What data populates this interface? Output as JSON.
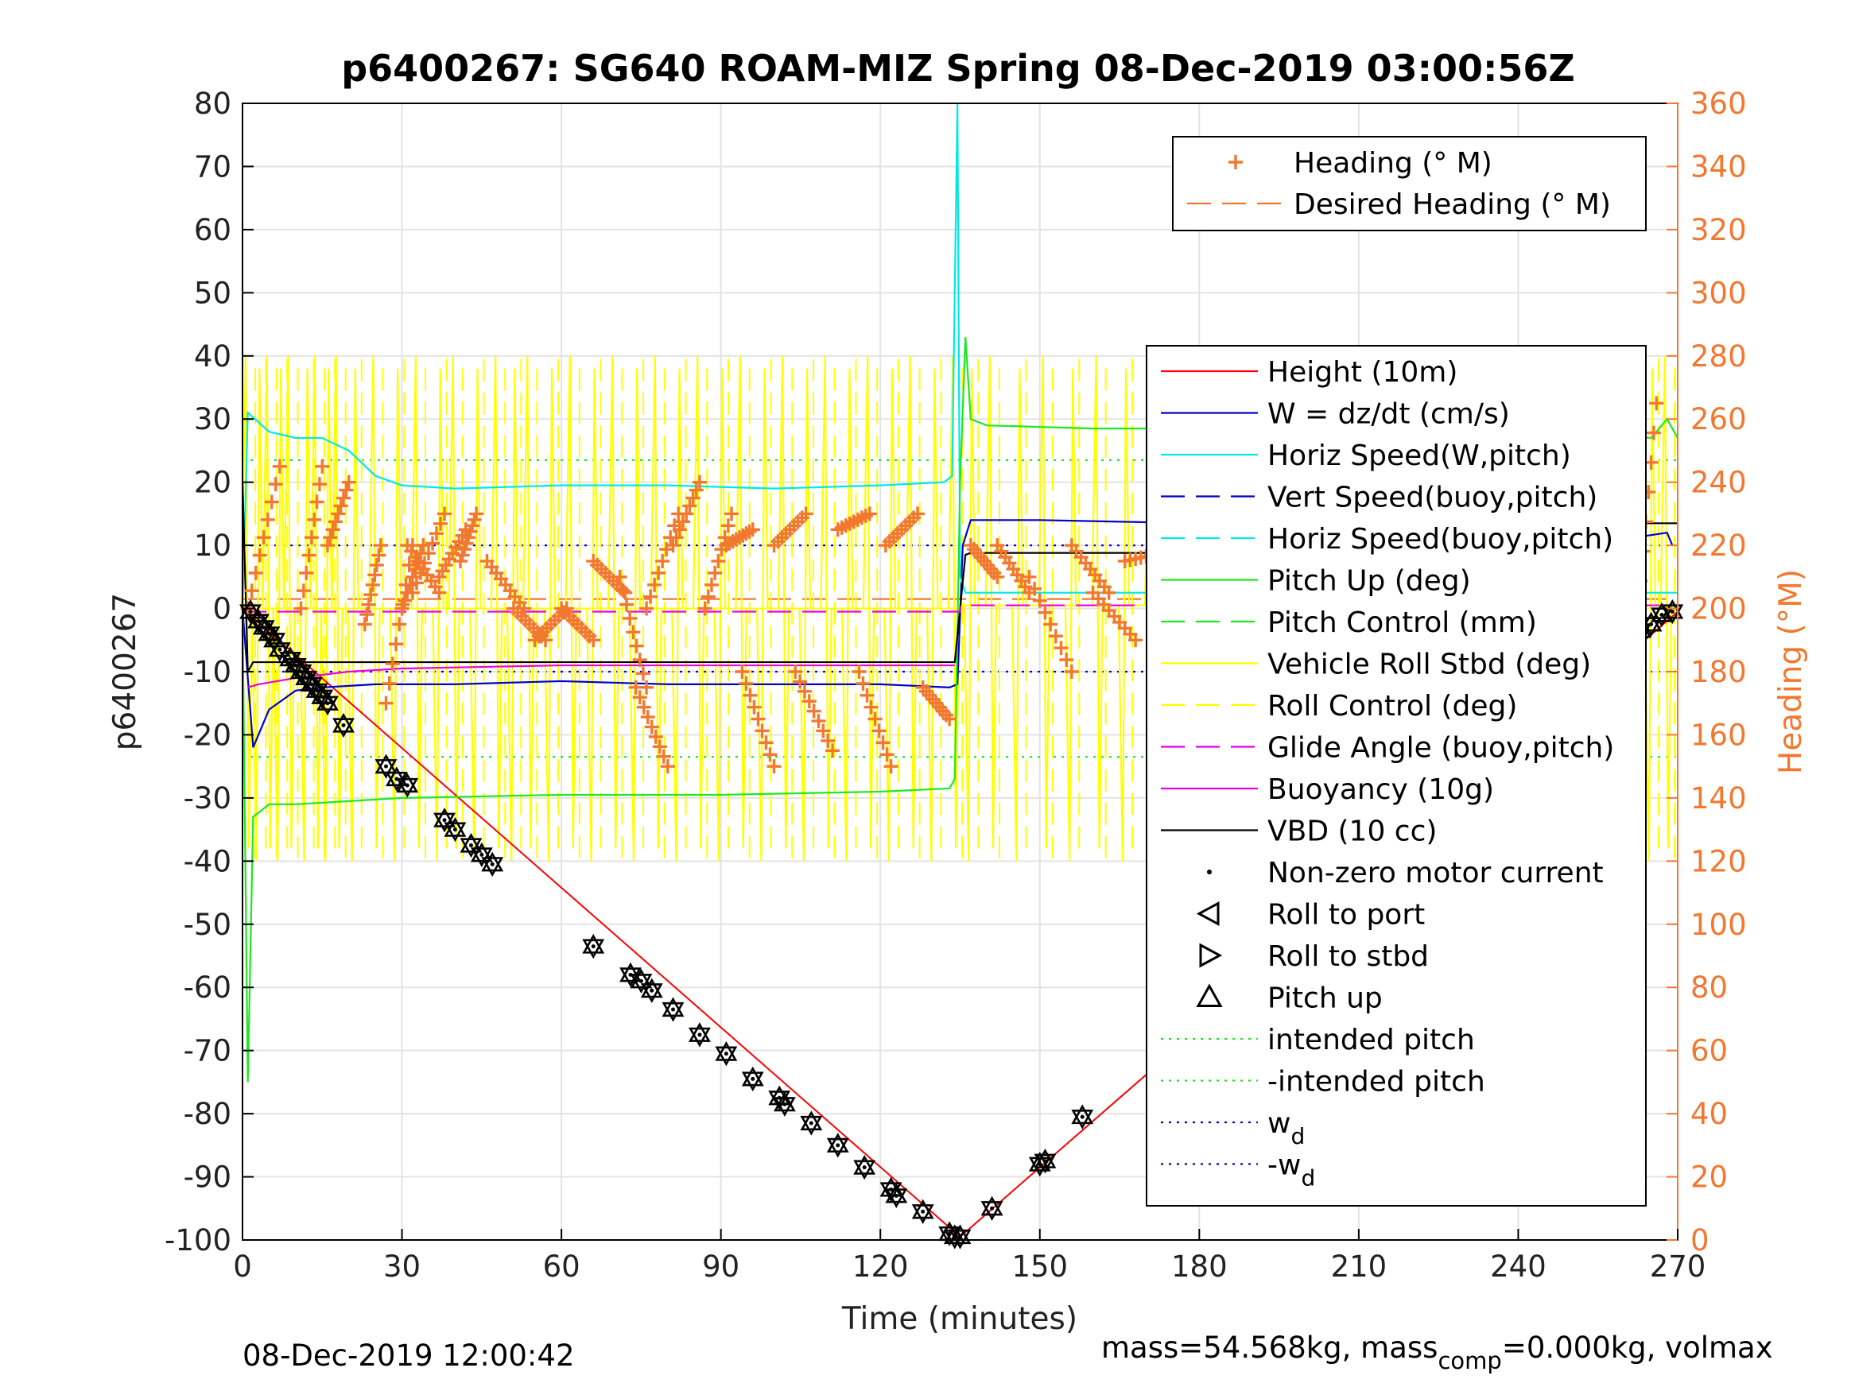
{
  "chart_data": {
    "type": "line",
    "title": "p6400267: SG640 ROAM-MIZ Spring 08-Dec-2019 03:00:56Z",
    "xlabel": "Time (minutes)",
    "ylabel": "p6400267",
    "ylabel_right": "Heading (°M)",
    "xlim": [
      0,
      270
    ],
    "ylim": [
      -100,
      80
    ],
    "ylim_right": [
      0,
      360
    ],
    "x_ticks": [
      0,
      30,
      60,
      90,
      120,
      150,
      180,
      210,
      240,
      270
    ],
    "y_ticks": [
      -100,
      -90,
      -80,
      -70,
      -60,
      -50,
      -40,
      -30,
      -20,
      -10,
      0,
      10,
      20,
      30,
      40,
      50,
      60,
      70,
      80
    ],
    "y_ticks_right": [
      0,
      20,
      40,
      60,
      80,
      100,
      120,
      140,
      160,
      180,
      200,
      220,
      240,
      260,
      280,
      300,
      320,
      340,
      360
    ],
    "grid": true,
    "footer_left": "08-Dec-2019 12:00:42",
    "footer_right": "mass=54.568kg, mass",
    "footer_right_sub": "comp",
    "footer_right_tail": "=0.000kg, volmax",
    "legend_top": [
      {
        "label": "Heading (° M)",
        "color": "#f27830",
        "marker": "+",
        "style": "none"
      },
      {
        "label": "Desired Heading (° M)",
        "color": "#f27830",
        "style": "dash"
      }
    ],
    "legend_main": [
      {
        "label": "Height (10m)",
        "color": "#ff0000",
        "style": "solid"
      },
      {
        "label": "W = dz/dt (cm/s)",
        "color": "#0000c8",
        "style": "solid"
      },
      {
        "label": "Horiz Speed(W,pitch)",
        "color": "#00e8e8",
        "style": "solid"
      },
      {
        "label": "Vert Speed(buoy,pitch)",
        "color": "#0000c8",
        "style": "dash"
      },
      {
        "label": "Horiz Speed(buoy,pitch)",
        "color": "#00e8e8",
        "style": "dash"
      },
      {
        "label": "Pitch Up (deg)",
        "color": "#1ee81e",
        "style": "solid"
      },
      {
        "label": "Pitch Control (mm)",
        "color": "#1ee81e",
        "style": "dash"
      },
      {
        "label": "Vehicle Roll Stbd (deg)",
        "color": "#ffff00",
        "style": "solid"
      },
      {
        "label": "Roll Control (deg)",
        "color": "#ffff00",
        "style": "dash"
      },
      {
        "label": "Glide Angle (buoy,pitch)",
        "color": "#e800e8",
        "style": "dash"
      },
      {
        "label": "Buoyancy (10g)",
        "color": "#e800e8",
        "style": "solid"
      },
      {
        "label": "VBD (10 cc)",
        "color": "#000000",
        "style": "solid"
      },
      {
        "label": "Non-zero motor current",
        "color": "#000000",
        "marker": "dot"
      },
      {
        "label": "Roll to port",
        "color": "#000000",
        "marker": "tri-left"
      },
      {
        "label": "Roll to stbd",
        "color": "#000000",
        "marker": "tri-right"
      },
      {
        "label": "Pitch up",
        "color": "#000000",
        "marker": "tri-up"
      },
      {
        "label": "intended pitch",
        "color": "#1ee81e",
        "style": "dot"
      },
      {
        "label": "-intended pitch",
        "color": "#1ee81e",
        "style": "dot"
      },
      {
        "label": "w",
        "sub": "d",
        "color": "#0000c8",
        "style": "dot"
      },
      {
        "label": "-w",
        "sub": "d",
        "color": "#0000c8",
        "style": "dot"
      }
    ],
    "series": [
      {
        "name": "Height (10m)",
        "color": "#ff0000",
        "x": [
          0,
          135,
          270
        ],
        "y": [
          0,
          -99.5,
          -0.5
        ]
      },
      {
        "name": "W = dz/dt (cm/s)",
        "color": "#0000c8",
        "x": [
          0,
          2,
          5,
          10,
          15,
          25,
          40,
          60,
          80,
          100,
          120,
          133,
          134.5,
          135.5,
          137,
          150,
          180,
          210,
          240,
          260,
          268,
          269
        ],
        "y": [
          0,
          -22,
          -16,
          -13,
          -12.5,
          -12,
          -12,
          -11.5,
          -12,
          -12,
          -12,
          -12.5,
          -12,
          10,
          14,
          14,
          13.5,
          13,
          12,
          11,
          12,
          10
        ]
      },
      {
        "name": "Horiz Speed(W,pitch)",
        "color": "#00e8e8",
        "x": [
          0,
          1,
          5,
          10,
          15,
          20,
          25,
          30,
          40,
          60,
          80,
          100,
          120,
          132,
          133.5,
          134.5,
          135,
          136,
          270
        ],
        "y": [
          0,
          31,
          28,
          27,
          27,
          25,
          21,
          19.5,
          19,
          19.5,
          19.5,
          19,
          19.5,
          20,
          21,
          80,
          5,
          2.5,
          2.5
        ]
      },
      {
        "name": "Pitch Up (deg)",
        "color": "#1ee81e",
        "x": [
          0,
          1,
          2,
          5,
          10,
          20,
          30,
          60,
          90,
          120,
          133,
          134,
          135,
          136,
          137,
          140,
          160,
          180,
          210,
          240,
          260,
          265,
          268,
          270
        ],
        "y": [
          0,
          -75,
          -33,
          -31,
          -31,
          -30.5,
          -30,
          -29.5,
          -29.5,
          -29,
          -28.5,
          -27,
          20,
          43,
          30,
          29,
          28.5,
          28.5,
          28,
          28,
          27.5,
          27,
          30,
          27
        ]
      },
      {
        "name": "VBD (10 cc)",
        "color": "#000000",
        "x": [
          0,
          1,
          2,
          30,
          60,
          90,
          120,
          134,
          136,
          137,
          180,
          210,
          240,
          262,
          263,
          270
        ],
        "y": [
          20,
          -10,
          -8.5,
          -8.5,
          -8.5,
          -8.5,
          -8.5,
          -8.5,
          8.5,
          8.8,
          8.8,
          8.8,
          8.8,
          8.8,
          13.5,
          13.5
        ]
      },
      {
        "name": "Buoyancy (10g)",
        "color": "#e800e8",
        "x": [
          1,
          3,
          10,
          20,
          30,
          60,
          134
        ],
        "y": [
          -12.5,
          -12,
          -11,
          -10,
          -9.5,
          -9,
          -9
        ]
      },
      {
        "name": "Glide Angle (buoy,pitch)",
        "color": "#e800e8",
        "x": [
          0,
          135,
          135,
          270
        ],
        "y": [
          -0.5,
          -0.5,
          0.5,
          0.5
        ]
      },
      {
        "name": "Desired Heading (° M)",
        "color": "#f27830",
        "x": [
          0,
          270
        ],
        "y": [
          3.5,
          3.5
        ]
      },
      {
        "name": "intended pitch",
        "color": "#1ee81e",
        "x": [
          0,
          270
        ],
        "y": [
          23.5,
          23.5
        ]
      },
      {
        "name": "-intended pitch",
        "color": "#1ee81e",
        "x": [
          0,
          270
        ],
        "y": [
          -23.5,
          -23.5
        ]
      },
      {
        "name": "w",
        "color": "#0000c8",
        "x": [
          0,
          270
        ],
        "y": [
          10,
          10
        ]
      },
      {
        "name": "-w",
        "color": "#0000c8",
        "x": [
          0,
          270
        ],
        "y": [
          -10,
          -10
        ]
      }
    ],
    "roll_spikes_x": [
      1,
      3,
      5,
      7,
      9,
      12,
      14,
      16,
      18,
      21,
      25,
      29,
      33,
      37,
      40,
      44,
      48,
      51,
      54,
      58,
      62,
      66,
      70,
      74,
      78,
      82,
      86,
      90,
      94,
      98,
      102,
      106,
      110,
      114,
      118,
      122,
      126,
      130,
      134,
      137,
      141,
      146,
      151,
      156,
      161,
      166,
      171,
      176,
      181,
      186,
      191,
      196,
      201,
      206,
      211,
      216,
      221,
      226,
      231,
      236,
      241,
      246,
      251,
      256,
      261,
      265,
      268
    ],
    "heading_scan_segments": [
      {
        "x": [
          1,
          7
        ],
        "y": [
          200,
          245
        ]
      },
      {
        "x": [
          11,
          15
        ],
        "y": [
          200,
          245
        ]
      },
      {
        "x": [
          16,
          20
        ],
        "y": [
          220,
          240
        ]
      },
      {
        "x": [
          23,
          26
        ],
        "y": [
          195,
          220
        ]
      },
      {
        "x": [
          27,
          32
        ],
        "y": [
          170,
          220
        ]
      },
      {
        "x": [
          30,
          34
        ],
        "y": [
          200,
          220
        ]
      },
      {
        "x": [
          31,
          37
        ],
        "y": [
          220,
          205
        ]
      },
      {
        "x": [
          32,
          38
        ],
        "y": [
          205,
          230
        ]
      },
      {
        "x": [
          37,
          42
        ],
        "y": [
          210,
          225
        ]
      },
      {
        "x": [
          41,
          44
        ],
        "y": [
          215,
          230
        ]
      },
      {
        "x": [
          46,
          53
        ],
        "y": [
          215,
          200
        ]
      },
      {
        "x": [
          51,
          57
        ],
        "y": [
          200,
          190
        ]
      },
      {
        "x": [
          55,
          61
        ],
        "y": [
          190,
          200
        ]
      },
      {
        "x": [
          60,
          66
        ],
        "y": [
          200,
          190
        ]
      },
      {
        "x": [
          66,
          72
        ],
        "y": [
          215,
          205
        ]
      },
      {
        "x": [
          71,
          76
        ],
        "y": [
          210,
          175
        ]
      },
      {
        "x": [
          74,
          80
        ],
        "y": [
          175,
          150
        ]
      },
      {
        "x": [
          76,
          82
        ],
        "y": [
          200,
          230
        ]
      },
      {
        "x": [
          81,
          86
        ],
        "y": [
          220,
          240
        ]
      },
      {
        "x": [
          87,
          92
        ],
        "y": [
          200,
          230
        ]
      },
      {
        "x": [
          91,
          96
        ],
        "y": [
          220,
          225
        ]
      },
      {
        "x": [
          94,
          100
        ],
        "y": [
          180,
          150
        ]
      },
      {
        "x": [
          100,
          106
        ],
        "y": [
          220,
          230
        ]
      },
      {
        "x": [
          104,
          111
        ],
        "y": [
          180,
          155
        ]
      },
      {
        "x": [
          112,
          118
        ],
        "y": [
          225,
          230
        ]
      },
      {
        "x": [
          116,
          122
        ],
        "y": [
          180,
          150
        ]
      },
      {
        "x": [
          121,
          127
        ],
        "y": [
          220,
          230
        ]
      },
      {
        "x": [
          128,
          133
        ],
        "y": [
          175,
          165
        ]
      },
      {
        "x": [
          137,
          142
        ],
        "y": [
          220,
          210
        ]
      },
      {
        "x": [
          142,
          148
        ],
        "y": [
          220,
          205
        ]
      },
      {
        "x": [
          148,
          156
        ],
        "y": [
          210,
          180
        ]
      },
      {
        "x": [
          156,
          163
        ],
        "y": [
          220,
          205
        ]
      },
      {
        "x": [
          160,
          168
        ],
        "y": [
          205,
          190
        ]
      },
      {
        "x": [
          166,
          174
        ],
        "y": [
          215,
          218
        ]
      },
      {
        "x": [
          175,
          182
        ],
        "y": [
          220,
          210
        ]
      },
      {
        "x": [
          181,
          190
        ],
        "y": [
          215,
          195
        ]
      },
      {
        "x": [
          189,
          194
        ],
        "y": [
          200,
          185
        ]
      },
      {
        "x": [
          196,
          203
        ],
        "y": [
          220,
          200
        ]
      },
      {
        "x": [
          200,
          206
        ],
        "y": [
          190,
          180
        ]
      },
      {
        "x": [
          214,
          220
        ],
        "y": [
          215,
          200
        ]
      },
      {
        "x": [
          224,
          232
        ],
        "y": [
          220,
          205
        ]
      },
      {
        "x": [
          236,
          244
        ],
        "y": [
          215,
          200
        ]
      },
      {
        "x": [
          250,
          258
        ],
        "y": [
          215,
          195
        ]
      },
      {
        "x": [
          262,
          266
        ],
        "y": [
          190,
          265
        ]
      }
    ],
    "motor_markers": [
      {
        "x": 1.5,
        "y": -0.5
      },
      {
        "x": 3,
        "y": -2
      },
      {
        "x": 4,
        "y": -3
      },
      {
        "x": 5,
        "y": -4
      },
      {
        "x": 6,
        "y": -5
      },
      {
        "x": 7,
        "y": -6.5
      },
      {
        "x": 9,
        "y": -8
      },
      {
        "x": 10,
        "y": -9
      },
      {
        "x": 11,
        "y": -10
      },
      {
        "x": 12,
        "y": -11
      },
      {
        "x": 13,
        "y": -12
      },
      {
        "x": 14,
        "y": -13
      },
      {
        "x": 15,
        "y": -14
      },
      {
        "x": 16,
        "y": -15
      },
      {
        "x": 19,
        "y": -18.5
      },
      {
        "x": 27,
        "y": -25
      },
      {
        "x": 29,
        "y": -27
      },
      {
        "x": 31,
        "y": -28
      },
      {
        "x": 38,
        "y": -33.5
      },
      {
        "x": 40,
        "y": -35
      },
      {
        "x": 43,
        "y": -37.5
      },
      {
        "x": 45,
        "y": -39
      },
      {
        "x": 47,
        "y": -40.5
      },
      {
        "x": 66,
        "y": -53.5
      },
      {
        "x": 73,
        "y": -58
      },
      {
        "x": 75,
        "y": -59
      },
      {
        "x": 77,
        "y": -60.5
      },
      {
        "x": 81,
        "y": -63.5
      },
      {
        "x": 86,
        "y": -67.5
      },
      {
        "x": 91,
        "y": -70.5
      },
      {
        "x": 96,
        "y": -74.5
      },
      {
        "x": 101,
        "y": -77.5
      },
      {
        "x": 102,
        "y": -78.5
      },
      {
        "x": 107,
        "y": -81.5
      },
      {
        "x": 112,
        "y": -85
      },
      {
        "x": 117,
        "y": -88.5
      },
      {
        "x": 122,
        "y": -92
      },
      {
        "x": 123,
        "y": -93
      },
      {
        "x": 128,
        "y": -95.5
      },
      {
        "x": 133,
        "y": -99
      },
      {
        "x": 134,
        "y": -99.5
      },
      {
        "x": 135,
        "y": -99.5
      },
      {
        "x": 141,
        "y": -95
      },
      {
        "x": 150,
        "y": -88
      },
      {
        "x": 151,
        "y": -87.5
      },
      {
        "x": 158,
        "y": -80.5
      },
      {
        "x": 175,
        "y": -67.5
      },
      {
        "x": 176,
        "y": -67
      },
      {
        "x": 189,
        "y": -55.5
      },
      {
        "x": 191,
        "y": -54.5
      },
      {
        "x": 193,
        "y": -53
      },
      {
        "x": 196,
        "y": -50.5
      },
      {
        "x": 198,
        "y": -48.5
      },
      {
        "x": 200,
        "y": -47
      },
      {
        "x": 202,
        "y": -45.5
      },
      {
        "x": 212,
        "y": -37
      },
      {
        "x": 220,
        "y": -32.5
      },
      {
        "x": 223,
        "y": -30.5
      },
      {
        "x": 226,
        "y": -27.5
      },
      {
        "x": 229,
        "y": -25
      },
      {
        "x": 233,
        "y": -22
      },
      {
        "x": 236,
        "y": -20
      },
      {
        "x": 239,
        "y": -18
      },
      {
        "x": 241,
        "y": -16.5
      },
      {
        "x": 248,
        "y": -13
      },
      {
        "x": 251,
        "y": -11
      },
      {
        "x": 253,
        "y": -9.5
      },
      {
        "x": 255,
        "y": -8.5
      },
      {
        "x": 257,
        "y": -7
      },
      {
        "x": 259,
        "y": -5.5
      },
      {
        "x": 261,
        "y": -4.5
      },
      {
        "x": 263,
        "y": -3.5
      },
      {
        "x": 265,
        "y": -2.5
      },
      {
        "x": 267,
        "y": -1
      },
      {
        "x": 269,
        "y": -0.5
      }
    ]
  }
}
